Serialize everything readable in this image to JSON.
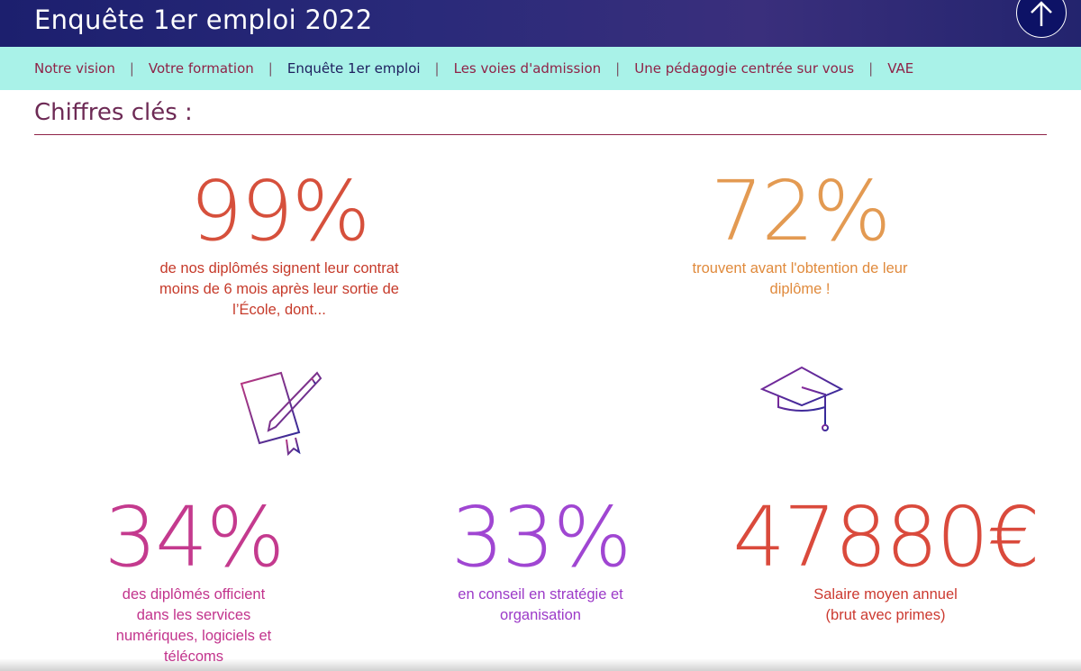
{
  "header": {
    "title": "Enquête 1er emploi 2022"
  },
  "nav": {
    "items": [
      "Notre vision",
      "Votre formation",
      "Enquête 1er emploi",
      "Les voies d'admission",
      "Une pédagogie centrée sur vous",
      "VAE"
    ],
    "active": 2
  },
  "section": {
    "title": "Chiffres clés :"
  },
  "stats": [
    {
      "figure": "99%",
      "lines": [
        "de nos diplômés signent leur contrat",
        "moins de 6 mois après leur sortie de",
        "l’École, dont..."
      ]
    },
    {
      "figure": "72%",
      "lines": [
        "trouvent avant l'obtention de leur",
        "diplôme !"
      ]
    },
    {
      "figure": "34%",
      "lines": [
        "des diplômés officient",
        "dans les services",
        "numériques, logiciels et",
        "télécoms"
      ]
    },
    {
      "figure": "33%",
      "lines": [
        "en conseil en stratégie et",
        "organisation"
      ]
    },
    {
      "figure": "47880€",
      "lines": [
        "Salaire moyen annuel",
        "(brut avec primes)"
      ]
    }
  ]
}
